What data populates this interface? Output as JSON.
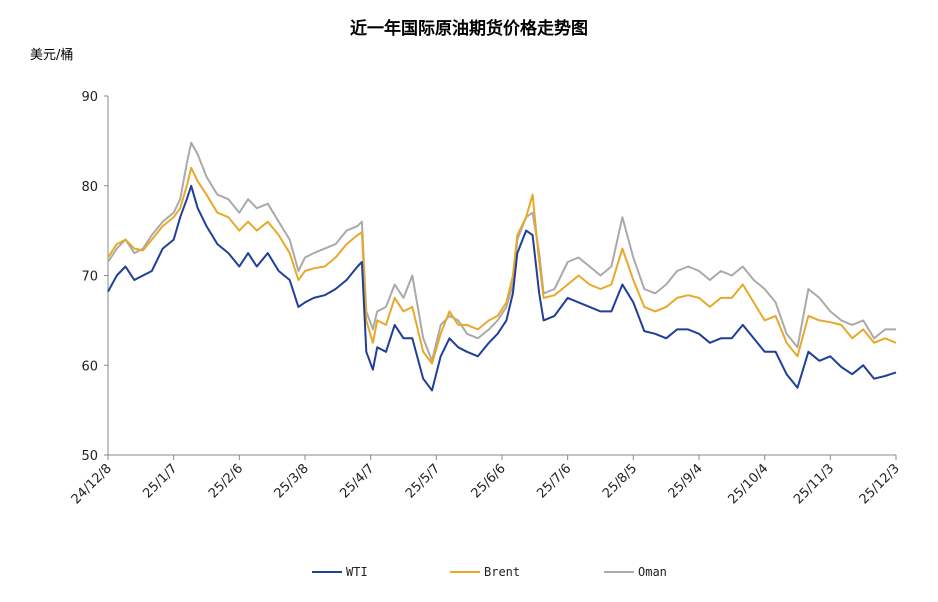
{
  "chart_data": {
    "type": "line",
    "title": "近一年国际原油期货价格走势图",
    "ylabel": "美元/桶",
    "ylim": [
      50,
      90
    ],
    "yticks": [
      "50",
      "60",
      "70",
      "80",
      "90"
    ],
    "xlim": [
      "2024-12-08",
      "2025-12-03"
    ],
    "xticks": [
      "24/12/8",
      "25/1/7",
      "25/2/6",
      "25/3/8",
      "25/4/7",
      "25/5/7",
      "25/6/6",
      "25/7/6",
      "25/8/5",
      "25/9/4",
      "25/10/4",
      "25/11/3",
      "25/12/3"
    ],
    "legend_position": "bottom",
    "series": [
      {
        "name": "WTI",
        "color": "#1f3f99",
        "points": [
          [
            "2024-12-08",
            68.2
          ],
          [
            "2024-12-12",
            70.0
          ],
          [
            "2024-12-16",
            71.0
          ],
          [
            "2024-12-20",
            69.5
          ],
          [
            "2024-12-24",
            70.0
          ],
          [
            "2024-12-28",
            70.5
          ],
          [
            "2025-01-02",
            73.0
          ],
          [
            "2025-01-07",
            74.0
          ],
          [
            "2025-01-10",
            76.5
          ],
          [
            "2025-01-13",
            78.5
          ],
          [
            "2025-01-15",
            80.0
          ],
          [
            "2025-01-18",
            77.5
          ],
          [
            "2025-01-22",
            75.5
          ],
          [
            "2025-01-27",
            73.5
          ],
          [
            "2025-02-01",
            72.5
          ],
          [
            "2025-02-06",
            71.0
          ],
          [
            "2025-02-10",
            72.5
          ],
          [
            "2025-02-14",
            71.0
          ],
          [
            "2025-02-19",
            72.5
          ],
          [
            "2025-02-24",
            70.5
          ],
          [
            "2025-03-01",
            69.5
          ],
          [
            "2025-03-05",
            66.5
          ],
          [
            "2025-03-08",
            67.0
          ],
          [
            "2025-03-12",
            67.5
          ],
          [
            "2025-03-17",
            67.8
          ],
          [
            "2025-03-22",
            68.5
          ],
          [
            "2025-03-27",
            69.5
          ],
          [
            "2025-04-01",
            71.0
          ],
          [
            "2025-04-03",
            71.5
          ],
          [
            "2025-04-05",
            61.5
          ],
          [
            "2025-04-08",
            59.5
          ],
          [
            "2025-04-10",
            62.0
          ],
          [
            "2025-04-14",
            61.5
          ],
          [
            "2025-04-18",
            64.5
          ],
          [
            "2025-04-22",
            63.0
          ],
          [
            "2025-04-26",
            63.0
          ],
          [
            "2025-05-01",
            58.5
          ],
          [
            "2025-05-05",
            57.2
          ],
          [
            "2025-05-09",
            61.0
          ],
          [
            "2025-05-13",
            63.0
          ],
          [
            "2025-05-17",
            62.0
          ],
          [
            "2025-05-21",
            61.5
          ],
          [
            "2025-05-26",
            61.0
          ],
          [
            "2025-05-31",
            62.5
          ],
          [
            "2025-06-04",
            63.5
          ],
          [
            "2025-06-08",
            65.0
          ],
          [
            "2025-06-11",
            68.0
          ],
          [
            "2025-06-13",
            72.5
          ],
          [
            "2025-06-17",
            75.0
          ],
          [
            "2025-06-20",
            74.5
          ],
          [
            "2025-06-23",
            68.0
          ],
          [
            "2025-06-25",
            65.0
          ],
          [
            "2025-06-30",
            65.5
          ],
          [
            "2025-07-06",
            67.5
          ],
          [
            "2025-07-11",
            67.0
          ],
          [
            "2025-07-16",
            66.5
          ],
          [
            "2025-07-21",
            66.0
          ],
          [
            "2025-07-26",
            66.0
          ],
          [
            "2025-07-31",
            69.0
          ],
          [
            "2025-08-05",
            67.0
          ],
          [
            "2025-08-10",
            63.8
          ],
          [
            "2025-08-15",
            63.5
          ],
          [
            "2025-08-20",
            63.0
          ],
          [
            "2025-08-25",
            64.0
          ],
          [
            "2025-08-30",
            64.0
          ],
          [
            "2025-09-04",
            63.5
          ],
          [
            "2025-09-09",
            62.5
          ],
          [
            "2025-09-14",
            63.0
          ],
          [
            "2025-09-19",
            63.0
          ],
          [
            "2025-09-24",
            64.5
          ],
          [
            "2025-09-29",
            63.0
          ],
          [
            "2025-10-04",
            61.5
          ],
          [
            "2025-10-09",
            61.5
          ],
          [
            "2025-10-14",
            59.0
          ],
          [
            "2025-10-19",
            57.5
          ],
          [
            "2025-10-24",
            61.5
          ],
          [
            "2025-10-29",
            60.5
          ],
          [
            "2025-11-03",
            61.0
          ],
          [
            "2025-11-08",
            59.8
          ],
          [
            "2025-11-13",
            59.0
          ],
          [
            "2025-11-18",
            60.0
          ],
          [
            "2025-11-23",
            58.5
          ],
          [
            "2025-11-28",
            58.8
          ],
          [
            "2025-12-03",
            59.2
          ]
        ]
      },
      {
        "name": "Brent",
        "color": "#e8a92b",
        "points": [
          [
            "2024-12-08",
            72.0
          ],
          [
            "2024-12-12",
            73.5
          ],
          [
            "2024-12-16",
            74.0
          ],
          [
            "2024-12-20",
            73.0
          ],
          [
            "2024-12-24",
            72.8
          ],
          [
            "2024-12-28",
            74.0
          ],
          [
            "2025-01-02",
            75.5
          ],
          [
            "2025-01-07",
            76.5
          ],
          [
            "2025-01-10",
            77.5
          ],
          [
            "2025-01-13",
            80.0
          ],
          [
            "2025-01-15",
            82.0
          ],
          [
            "2025-01-18",
            80.5
          ],
          [
            "2025-01-22",
            79.0
          ],
          [
            "2025-01-27",
            77.0
          ],
          [
            "2025-02-01",
            76.5
          ],
          [
            "2025-02-06",
            75.0
          ],
          [
            "2025-02-10",
            76.0
          ],
          [
            "2025-02-14",
            75.0
          ],
          [
            "2025-02-19",
            76.0
          ],
          [
            "2025-02-24",
            74.5
          ],
          [
            "2025-03-01",
            72.5
          ],
          [
            "2025-03-05",
            69.5
          ],
          [
            "2025-03-08",
            70.5
          ],
          [
            "2025-03-12",
            70.8
          ],
          [
            "2025-03-17",
            71.0
          ],
          [
            "2025-03-22",
            72.0
          ],
          [
            "2025-03-27",
            73.5
          ],
          [
            "2025-04-01",
            74.5
          ],
          [
            "2025-04-03",
            74.8
          ],
          [
            "2025-04-05",
            65.0
          ],
          [
            "2025-04-08",
            62.5
          ],
          [
            "2025-04-10",
            65.0
          ],
          [
            "2025-04-14",
            64.5
          ],
          [
            "2025-04-18",
            67.5
          ],
          [
            "2025-04-22",
            66.0
          ],
          [
            "2025-04-26",
            66.5
          ],
          [
            "2025-05-01",
            61.5
          ],
          [
            "2025-05-05",
            60.2
          ],
          [
            "2025-05-09",
            63.5
          ],
          [
            "2025-05-13",
            66.0
          ],
          [
            "2025-05-17",
            64.5
          ],
          [
            "2025-05-21",
            64.5
          ],
          [
            "2025-05-26",
            64.0
          ],
          [
            "2025-05-31",
            65.0
          ],
          [
            "2025-06-04",
            65.5
          ],
          [
            "2025-06-08",
            67.0
          ],
          [
            "2025-06-11",
            70.0
          ],
          [
            "2025-06-13",
            74.5
          ],
          [
            "2025-06-17",
            76.5
          ],
          [
            "2025-06-20",
            79.0
          ],
          [
            "2025-06-23",
            71.5
          ],
          [
            "2025-06-25",
            67.5
          ],
          [
            "2025-06-30",
            67.8
          ],
          [
            "2025-07-06",
            69.0
          ],
          [
            "2025-07-11",
            70.0
          ],
          [
            "2025-07-16",
            69.0
          ],
          [
            "2025-07-21",
            68.5
          ],
          [
            "2025-07-26",
            69.0
          ],
          [
            "2025-07-31",
            73.0
          ],
          [
            "2025-08-05",
            69.5
          ],
          [
            "2025-08-10",
            66.5
          ],
          [
            "2025-08-15",
            66.0
          ],
          [
            "2025-08-20",
            66.5
          ],
          [
            "2025-08-25",
            67.5
          ],
          [
            "2025-08-30",
            67.8
          ],
          [
            "2025-09-04",
            67.5
          ],
          [
            "2025-09-09",
            66.5
          ],
          [
            "2025-09-14",
            67.5
          ],
          [
            "2025-09-19",
            67.5
          ],
          [
            "2025-09-24",
            69.0
          ],
          [
            "2025-09-29",
            67.0
          ],
          [
            "2025-10-04",
            65.0
          ],
          [
            "2025-10-09",
            65.5
          ],
          [
            "2025-10-14",
            62.5
          ],
          [
            "2025-10-19",
            61.0
          ],
          [
            "2025-10-24",
            65.5
          ],
          [
            "2025-10-29",
            65.0
          ],
          [
            "2025-11-03",
            64.8
          ],
          [
            "2025-11-08",
            64.5
          ],
          [
            "2025-11-13",
            63.0
          ],
          [
            "2025-11-18",
            64.0
          ],
          [
            "2025-11-23",
            62.5
          ],
          [
            "2025-11-28",
            63.0
          ],
          [
            "2025-12-03",
            62.5
          ]
        ]
      },
      {
        "name": "Oman",
        "color": "#aaaaaa",
        "points": [
          [
            "2024-12-08",
            71.5
          ],
          [
            "2024-12-12",
            73.0
          ],
          [
            "2024-12-16",
            74.0
          ],
          [
            "2024-12-20",
            72.5
          ],
          [
            "2024-12-24",
            73.0
          ],
          [
            "2024-12-28",
            74.5
          ],
          [
            "2025-01-02",
            76.0
          ],
          [
            "2025-01-07",
            77.0
          ],
          [
            "2025-01-10",
            78.5
          ],
          [
            "2025-01-13",
            82.5
          ],
          [
            "2025-01-15",
            84.8
          ],
          [
            "2025-01-18",
            83.5
          ],
          [
            "2025-01-22",
            81.0
          ],
          [
            "2025-01-27",
            79.0
          ],
          [
            "2025-02-01",
            78.5
          ],
          [
            "2025-02-06",
            77.0
          ],
          [
            "2025-02-10",
            78.5
          ],
          [
            "2025-02-14",
            77.5
          ],
          [
            "2025-02-19",
            78.0
          ],
          [
            "2025-02-24",
            76.0
          ],
          [
            "2025-03-01",
            74.0
          ],
          [
            "2025-03-05",
            70.5
          ],
          [
            "2025-03-08",
            72.0
          ],
          [
            "2025-03-12",
            72.5
          ],
          [
            "2025-03-17",
            73.0
          ],
          [
            "2025-03-22",
            73.5
          ],
          [
            "2025-03-27",
            75.0
          ],
          [
            "2025-04-01",
            75.5
          ],
          [
            "2025-04-03",
            76.0
          ],
          [
            "2025-04-05",
            66.0
          ],
          [
            "2025-04-08",
            64.0
          ],
          [
            "2025-04-10",
            66.0
          ],
          [
            "2025-04-14",
            66.5
          ],
          [
            "2025-04-18",
            69.0
          ],
          [
            "2025-04-22",
            67.5
          ],
          [
            "2025-04-26",
            70.0
          ],
          [
            "2025-05-01",
            63.0
          ],
          [
            "2025-05-05",
            60.5
          ],
          [
            "2025-05-09",
            64.5
          ],
          [
            "2025-05-13",
            65.5
          ],
          [
            "2025-05-17",
            65.0
          ],
          [
            "2025-05-21",
            63.5
          ],
          [
            "2025-05-26",
            63.0
          ],
          [
            "2025-05-31",
            64.0
          ],
          [
            "2025-06-04",
            65.0
          ],
          [
            "2025-06-08",
            66.5
          ],
          [
            "2025-06-11",
            69.0
          ],
          [
            "2025-06-13",
            74.0
          ],
          [
            "2025-06-17",
            76.5
          ],
          [
            "2025-06-20",
            77.0
          ],
          [
            "2025-06-23",
            72.5
          ],
          [
            "2025-06-25",
            68.0
          ],
          [
            "2025-06-30",
            68.5
          ],
          [
            "2025-07-06",
            71.5
          ],
          [
            "2025-07-11",
            72.0
          ],
          [
            "2025-07-16",
            71.0
          ],
          [
            "2025-07-21",
            70.0
          ],
          [
            "2025-07-26",
            71.0
          ],
          [
            "2025-07-31",
            76.5
          ],
          [
            "2025-08-05",
            72.0
          ],
          [
            "2025-08-10",
            68.5
          ],
          [
            "2025-08-15",
            68.0
          ],
          [
            "2025-08-20",
            69.0
          ],
          [
            "2025-08-25",
            70.5
          ],
          [
            "2025-08-30",
            71.0
          ],
          [
            "2025-09-04",
            70.5
          ],
          [
            "2025-09-09",
            69.5
          ],
          [
            "2025-09-14",
            70.5
          ],
          [
            "2025-09-19",
            70.0
          ],
          [
            "2025-09-24",
            71.0
          ],
          [
            "2025-09-29",
            69.5
          ],
          [
            "2025-10-04",
            68.5
          ],
          [
            "2025-10-09",
            67.0
          ],
          [
            "2025-10-14",
            63.5
          ],
          [
            "2025-10-19",
            62.0
          ],
          [
            "2025-10-24",
            68.5
          ],
          [
            "2025-10-29",
            67.5
          ],
          [
            "2025-11-03",
            66.0
          ],
          [
            "2025-11-08",
            65.0
          ],
          [
            "2025-11-13",
            64.5
          ],
          [
            "2025-11-18",
            65.0
          ],
          [
            "2025-11-23",
            63.0
          ],
          [
            "2025-11-28",
            64.0
          ],
          [
            "2025-12-03",
            64.0
          ]
        ]
      }
    ]
  }
}
